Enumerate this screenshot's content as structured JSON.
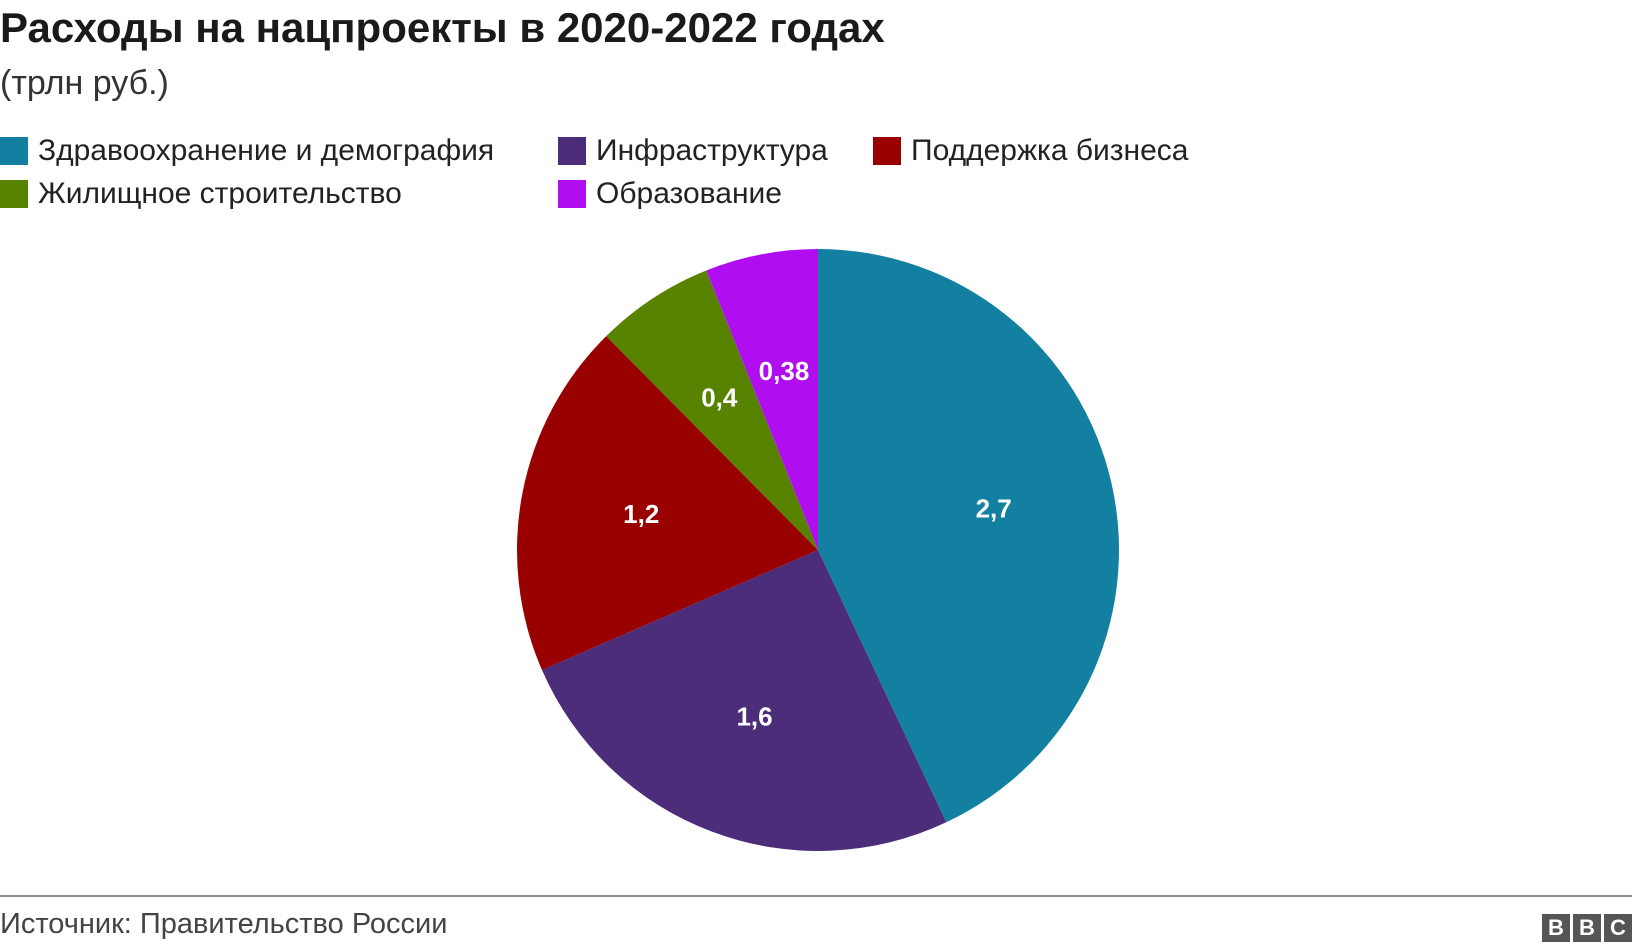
{
  "header": {
    "title": "Расходы на нацпроекты в 2020-2022 годах",
    "subtitle": "(трлн руб.)"
  },
  "footer": {
    "source": "Источник: Правительство России",
    "logo": [
      "B",
      "B",
      "C"
    ]
  },
  "chart_data": {
    "type": "pie",
    "title": "Расходы на нацпроекты в 2020-2022 годах",
    "unit": "трлн руб.",
    "legend_position": "top-left",
    "start_angle": "12 o'clock",
    "direction": "clockwise",
    "slices": [
      {
        "label": "Здравоохранение и демография",
        "value": 2.7,
        "display": "2,7",
        "color": "#1380A1"
      },
      {
        "label": "Инфраструктура",
        "value": 1.6,
        "display": "1,6",
        "color": "#4B2D7A"
      },
      {
        "label": "Поддержка бизнеса",
        "value": 1.2,
        "display": "1,2",
        "color": "#990000"
      },
      {
        "label": "Жилищное строительство",
        "value": 0.4,
        "display": "0,4",
        "color": "#588300"
      },
      {
        "label": "Образование",
        "value": 0.38,
        "display": "0,38",
        "color": "#B00EF0"
      }
    ]
  }
}
